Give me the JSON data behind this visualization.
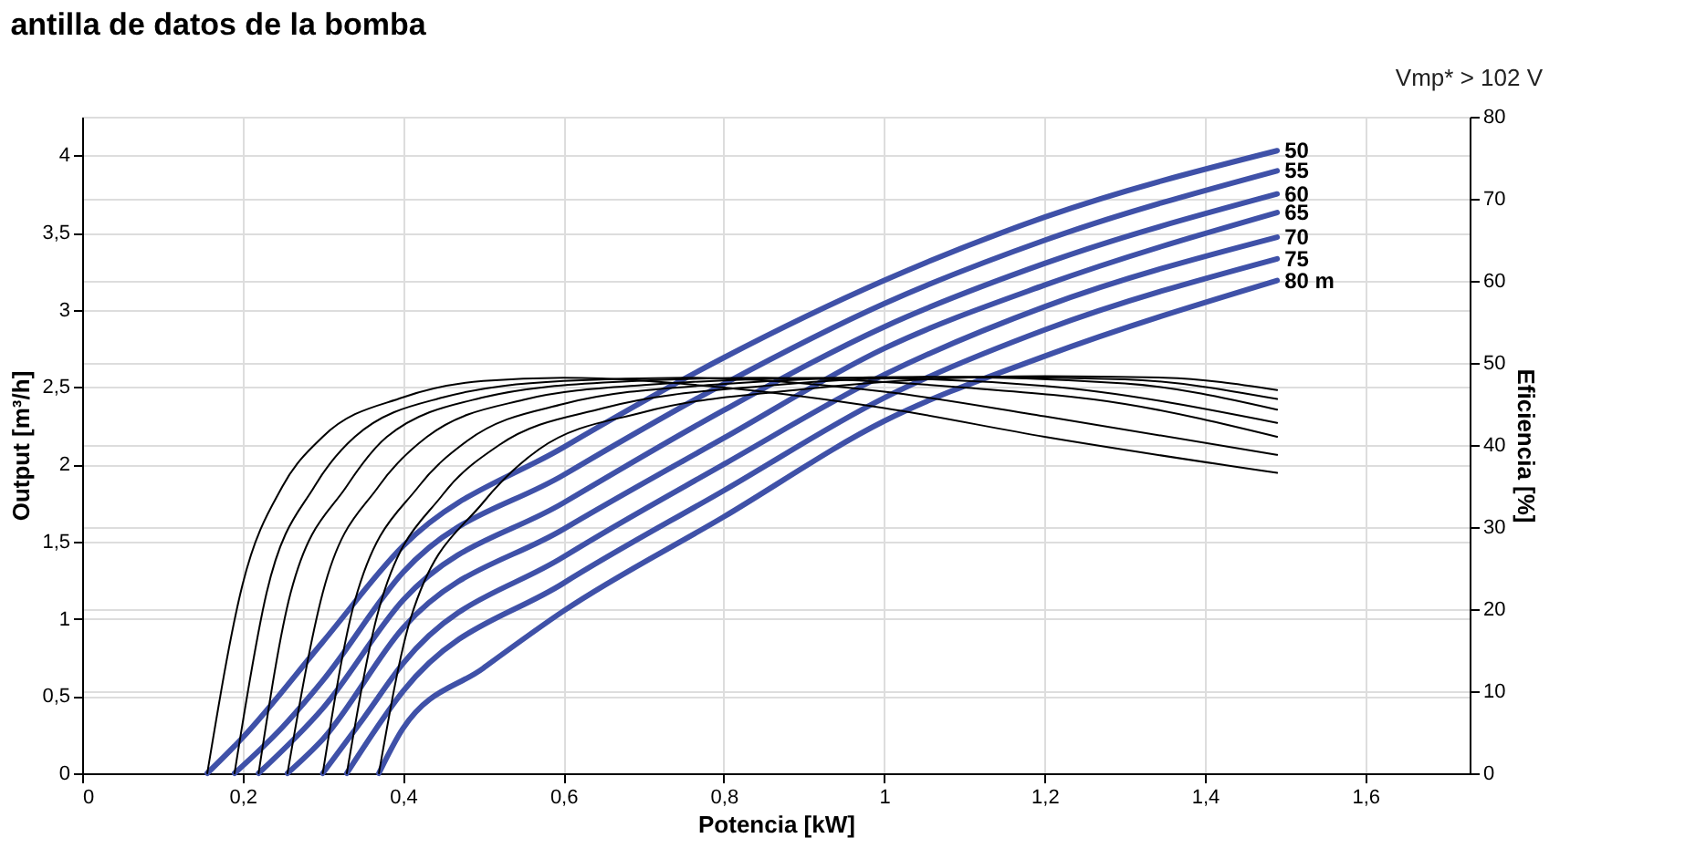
{
  "chart_data": {
    "type": "line",
    "title": "antilla de datos de la bomba",
    "xlabel": "Potencia [kW]",
    "ylabel": "Output [m³/h]",
    "y2label": "Eficiencia [%]",
    "annotations": [
      "Vmp* > 102 V"
    ],
    "xlim": [
      0,
      1.73
    ],
    "xticks": [
      0,
      {
        "value": 0.2,
        "label": "0,2"
      },
      {
        "value": 0.4,
        "label": "0,4"
      },
      {
        "value": 0.6,
        "label": "0,6"
      },
      {
        "value": 0.8,
        "label": "0,8"
      },
      1,
      {
        "value": 1.2,
        "label": "1,2"
      },
      {
        "value": 1.4,
        "label": "1,4"
      },
      {
        "value": 1.6,
        "label": "1,6"
      }
    ],
    "ylim": [
      0,
      4.25
    ],
    "yticks": [
      0,
      {
        "value": 0.5,
        "label": "0,5"
      },
      1,
      {
        "value": 1.5,
        "label": "1,5"
      },
      2,
      {
        "value": 2.5,
        "label": "2,5"
      },
      3,
      {
        "value": 3.5,
        "label": "3,5"
      },
      4
    ],
    "y2lim": [
      0,
      80
    ],
    "y2ticks": [
      0,
      10,
      20,
      30,
      40,
      50,
      60,
      70,
      80
    ],
    "grid": true,
    "series": [
      {
        "name": "50",
        "color": "#3f51a8",
        "x": [
          0.156,
          0.2,
          0.3,
          0.4,
          0.6,
          0.8,
          1.0,
          1.2,
          1.49
        ],
        "values": [
          0,
          0.23,
          0.85,
          1.47,
          2.11,
          2.69,
          3.19,
          3.6,
          4.03
        ]
      },
      {
        "name": "55",
        "color": "#3f51a8",
        "x": [
          0.19,
          0.25,
          0.3,
          0.4,
          0.6,
          0.8,
          1.0,
          1.2,
          1.49
        ],
        "values": [
          0,
          0.3,
          0.6,
          1.3,
          1.93,
          2.52,
          3.04,
          3.45,
          3.9
        ]
      },
      {
        "name": "60",
        "color": "#3f51a8",
        "x": [
          0.22,
          0.3,
          0.4,
          0.6,
          0.8,
          1.0,
          1.2,
          1.49
        ],
        "values": [
          0,
          0.42,
          1.12,
          1.75,
          2.35,
          2.89,
          3.3,
          3.75
        ]
      },
      {
        "name": "65",
        "color": "#3f51a8",
        "x": [
          0.256,
          0.3,
          0.4,
          0.6,
          0.8,
          1.0,
          1.2,
          1.49
        ],
        "values": [
          0,
          0.22,
          0.94,
          1.58,
          2.17,
          2.75,
          3.16,
          3.63
        ]
      },
      {
        "name": "70",
        "color": "#3f51a8",
        "x": [
          0.3,
          0.35,
          0.4,
          0.6,
          0.8,
          1.0,
          1.2,
          1.49
        ],
        "values": [
          0,
          0.35,
          0.71,
          1.4,
          2.0,
          2.58,
          3.02,
          3.47
        ]
      },
      {
        "name": "75",
        "color": "#3f51a8",
        "x": [
          0.33,
          0.4,
          0.6,
          0.8,
          1.0,
          1.2,
          1.49
        ],
        "values": [
          0,
          0.53,
          1.23,
          1.83,
          2.43,
          2.87,
          3.33
        ]
      },
      {
        "name": "80 m",
        "color": "#3f51a8",
        "x": [
          0.37,
          0.4,
          0.5,
          0.6,
          0.8,
          1.0,
          1.2,
          1.49
        ],
        "values": [
          0,
          0.29,
          0.68,
          1.05,
          1.66,
          2.28,
          2.7,
          3.19
        ]
      },
      {
        "color": "#000000",
        "axis": "y2",
        "x": [
          0.156,
          0.2,
          0.25,
          0.3,
          0.4,
          0.5,
          0.6,
          0.8,
          1.0,
          1.2,
          1.49
        ],
        "values": [
          0,
          23,
          35,
          41,
          45.8,
          47.8,
          48.2,
          47,
          44.5,
          41,
          36.6
        ]
      },
      {
        "color": "#000000",
        "axis": "y2",
        "x": [
          0.19,
          0.23,
          0.29,
          0.34,
          0.45,
          0.6,
          0.75,
          1.0,
          1.2,
          1.49
        ],
        "values": [
          0,
          22,
          35,
          41,
          45.8,
          47.8,
          48.2,
          46.5,
          43.5,
          38.8
        ]
      },
      {
        "color": "#000000",
        "axis": "y2",
        "x": [
          0.22,
          0.26,
          0.33,
          0.38,
          0.5,
          0.65,
          0.85,
          1.1,
          1.3,
          1.49
        ],
        "values": [
          0,
          22,
          35,
          41,
          45.8,
          47.6,
          48.2,
          47,
          45,
          41.0
        ]
      },
      {
        "color": "#000000",
        "axis": "y2",
        "x": [
          0.256,
          0.3,
          0.37,
          0.43,
          0.55,
          0.7,
          0.95,
          1.2,
          1.49
        ],
        "values": [
          0,
          22,
          35,
          41,
          45.5,
          47.3,
          48.2,
          47.2,
          42.7
        ]
      },
      {
        "color": "#000000",
        "axis": "y2",
        "x": [
          0.3,
          0.34,
          0.42,
          0.48,
          0.6,
          0.78,
          1.05,
          1.3,
          1.49
        ],
        "values": [
          0,
          21,
          35,
          40.5,
          45,
          47.3,
          48.3,
          47.5,
          44.3
        ]
      },
      {
        "color": "#000000",
        "axis": "y2",
        "x": [
          0.33,
          0.37,
          0.45,
          0.52,
          0.65,
          0.85,
          1.1,
          1.3,
          1.49
        ],
        "values": [
          0,
          20,
          34,
          40,
          44.5,
          47.2,
          48.3,
          48,
          45.6
        ]
      },
      {
        "color": "#000000",
        "axis": "y2",
        "x": [
          0.37,
          0.41,
          0.5,
          0.57,
          0.7,
          0.9,
          1.2,
          1.35,
          1.49
        ],
        "values": [
          0,
          19,
          33,
          39.5,
          44,
          46.8,
          48.4,
          48.2,
          46.7
        ]
      }
    ]
  }
}
